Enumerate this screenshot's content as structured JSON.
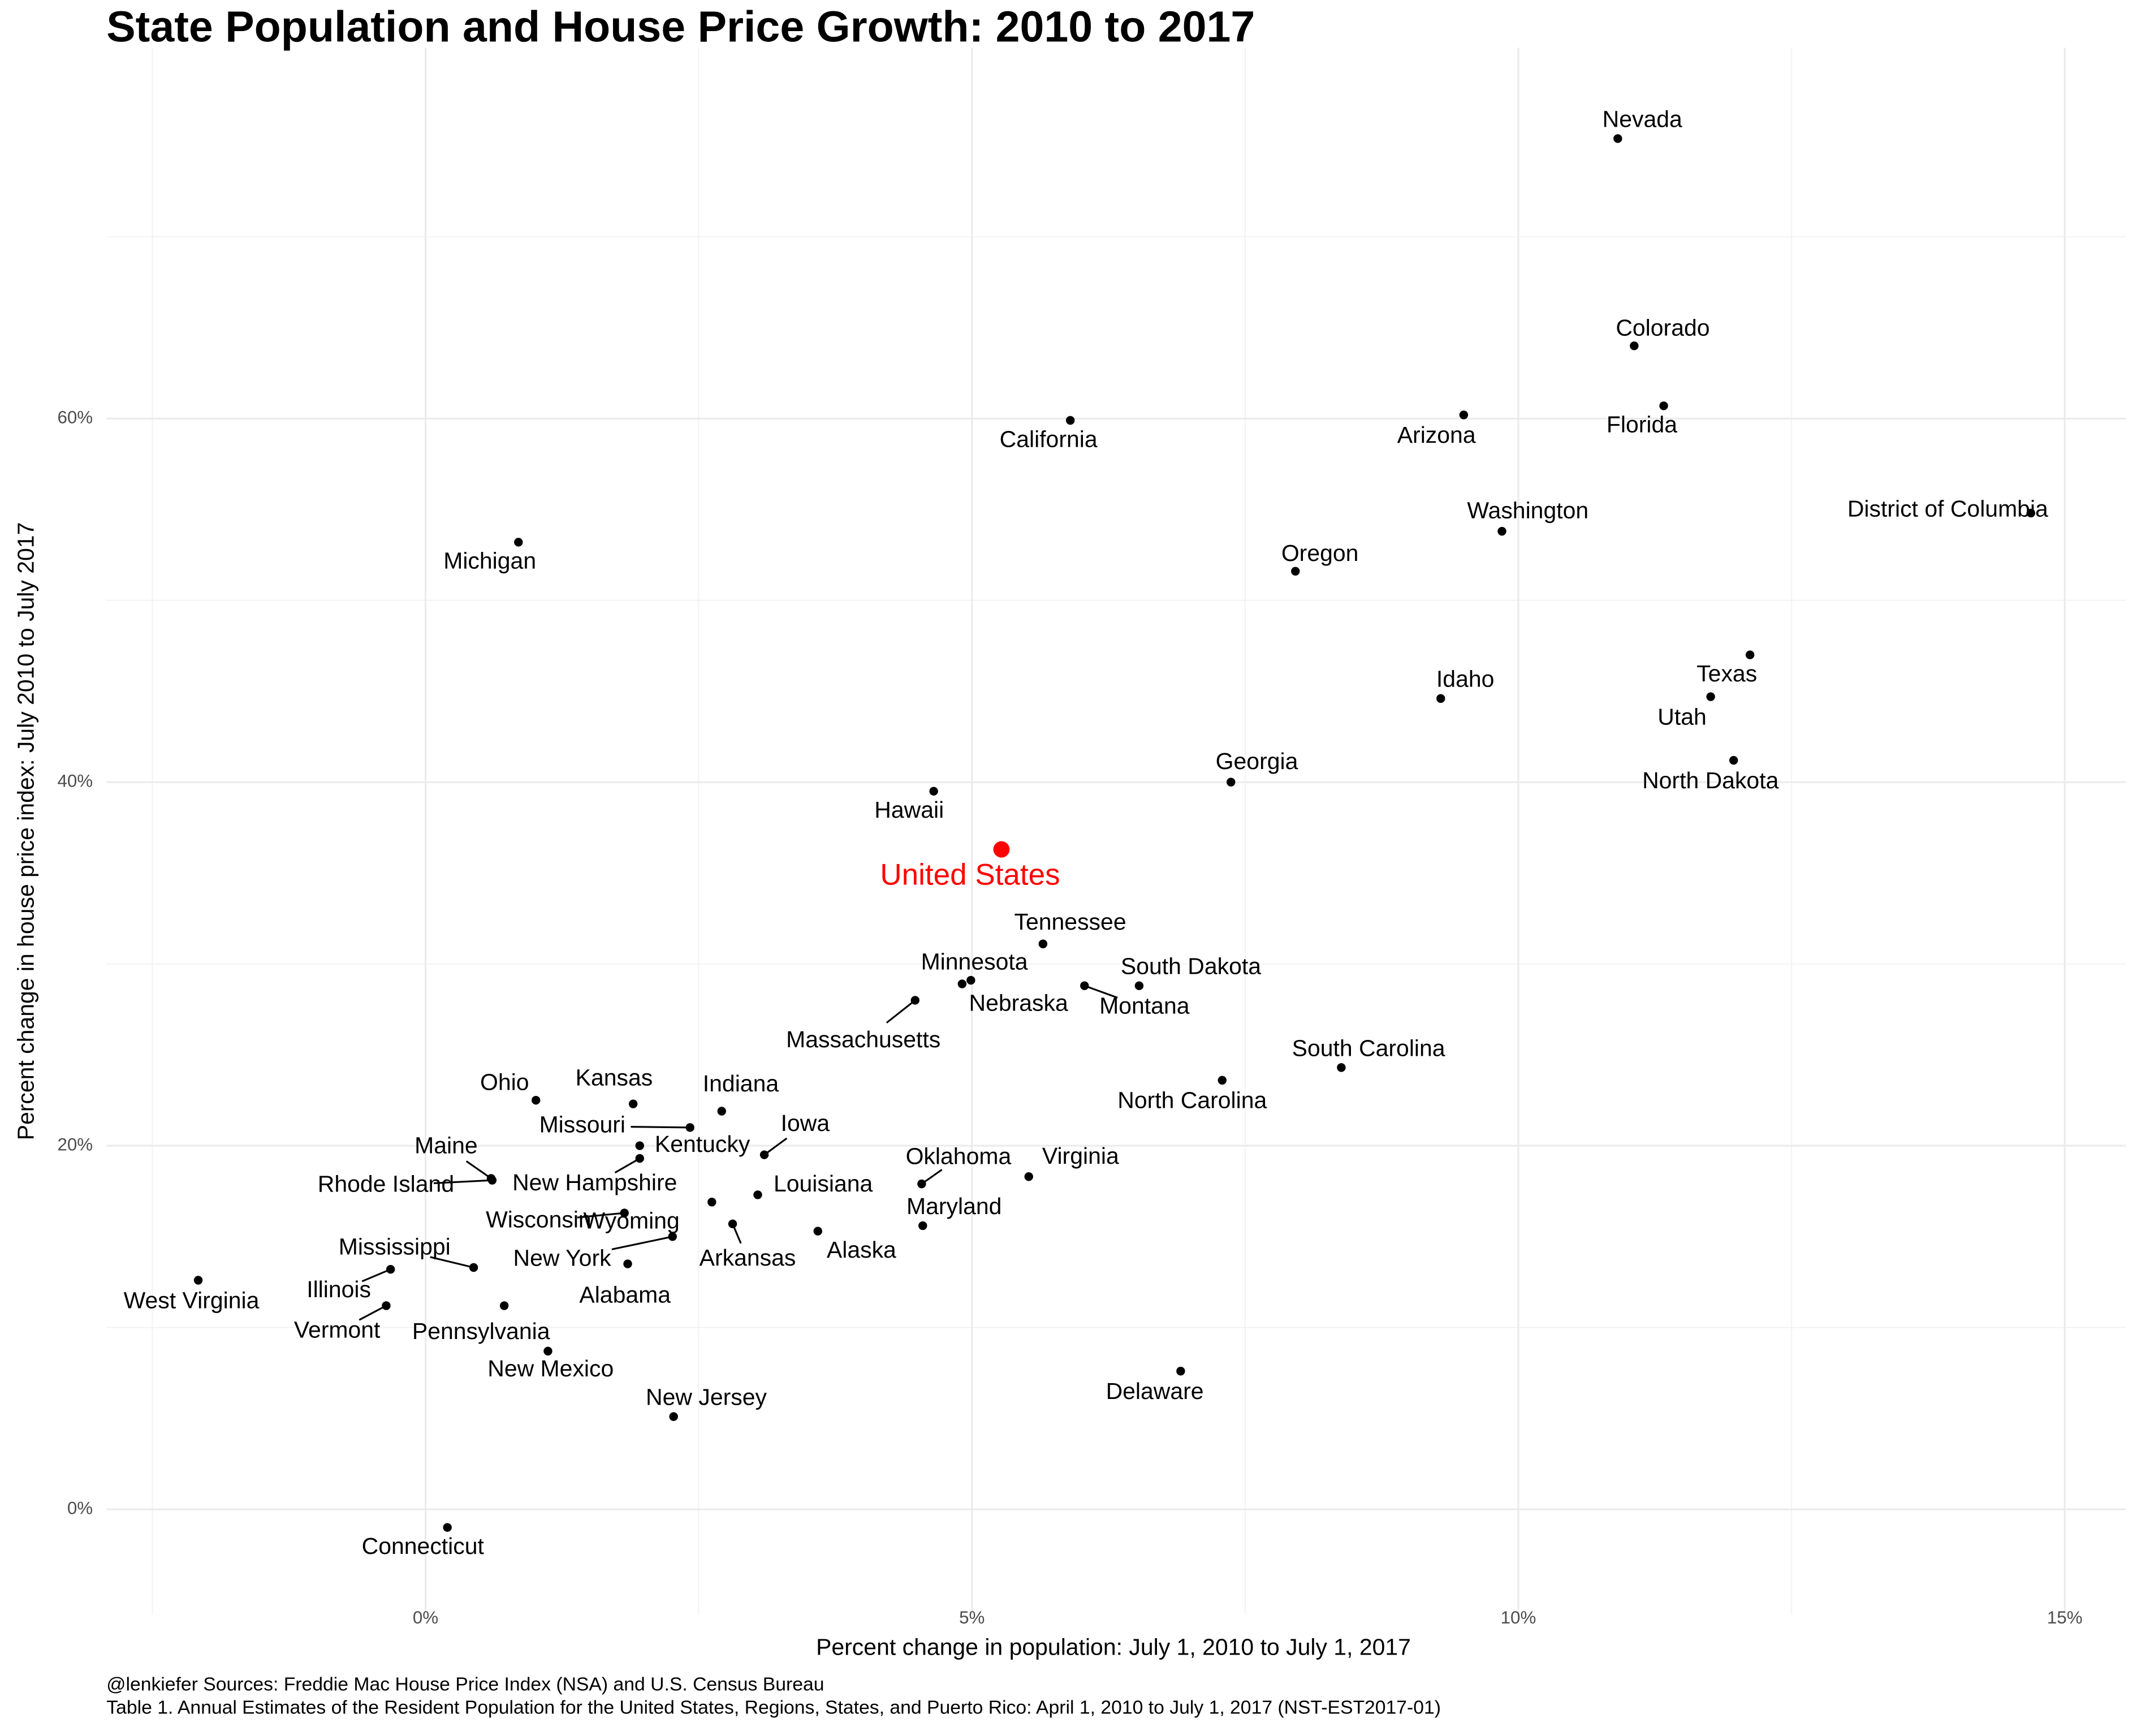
{
  "chart_data": {
    "type": "scatter",
    "title": "State Population and House Price Growth: 2010 to 2017",
    "x_label": "Percent change in population: July 1, 2010 to July 1, 2017",
    "y_label": "Percent change in house price index: July 2010 to July 2017",
    "caption": [
      "@lenkiefer Sources: Freddie Mac House Price Index (NSA) and U.S. Census Bureau",
      "Table 1. Annual Estimates of the Resident Population for the United States, Regions, States, and Puerto Rico: April 1, 2010 to July 1, 2017 (NST-EST2017-01)"
    ],
    "xlim": [
      -2.92,
      15.56
    ],
    "ylim": [
      -5.8,
      80.4
    ],
    "xticks": [
      {
        "value": 0,
        "label": "0%"
      },
      {
        "value": 5,
        "label": "5%"
      },
      {
        "value": 10,
        "label": "10%"
      },
      {
        "value": 15,
        "label": "15%"
      }
    ],
    "yticks": [
      {
        "value": 0,
        "label": "0%"
      },
      {
        "value": 20,
        "label": "20%"
      },
      {
        "value": 40,
        "label": "40%"
      },
      {
        "value": 60,
        "label": "60%"
      }
    ],
    "grid": true,
    "color": "#000000",
    "labels": [
      "Nevada",
      "Colorado",
      "Florida",
      "Arizona",
      "California",
      "Washington",
      "District of Columbia",
      "Michigan",
      "Oregon",
      "Texas",
      "Idaho",
      "Utah",
      "North Dakota",
      "Georgia",
      "Hawaii",
      "Tennessee",
      "Minnesota",
      "Nebraska",
      "South Dakota",
      "Montana",
      "Massachusetts",
      "South Carolina",
      "North Carolina",
      "Ohio",
      "Kansas",
      "Indiana",
      "Missouri",
      "Kentucky",
      "Iowa",
      "New Hampshire",
      "Maine",
      "Rhode Island",
      "Virginia",
      "Oklahoma",
      "Louisiana",
      "Wisconsin",
      "Arkansas",
      "Maryland",
      "Alaska",
      "Wyoming",
      "New York",
      "Alabama",
      "Mississippi",
      "Illinois",
      "West Virginia",
      "Vermont",
      "Pennsylvania",
      "New Mexico",
      "Delaware",
      "New Jersey",
      "Connecticut"
    ],
    "x": [
      10.91,
      11.06,
      11.33,
      9.5,
      5.9,
      9.85,
      14.69,
      0.85,
      7.96,
      12.12,
      9.29,
      11.76,
      11.97,
      7.37,
      4.65,
      5.65,
      4.91,
      4.99,
      6.53,
      6.03,
      4.48,
      8.38,
      7.29,
      1.01,
      1.9,
      2.71,
      2.42,
      1.96,
      3.1,
      1.96,
      0.6,
      0.61,
      5.52,
      4.54,
      3.04,
      1.82,
      2.81,
      4.55,
      3.59,
      2.62,
      2.26,
      1.85,
      0.44,
      -0.32,
      -2.08,
      -0.36,
      0.72,
      1.12,
      6.91,
      2.27,
      0.2
    ],
    "values": [
      75.4,
      64.0,
      60.7,
      60.2,
      59.9,
      53.8,
      54.8,
      53.2,
      51.6,
      47.0,
      44.6,
      44.7,
      41.2,
      40.0,
      39.5,
      31.1,
      28.9,
      29.1,
      28.8,
      28.8,
      28.0,
      24.3,
      23.6,
      22.5,
      22.3,
      21.9,
      21.0,
      20.0,
      19.5,
      19.3,
      18.2,
      18.1,
      18.3,
      17.9,
      17.3,
      16.3,
      15.7,
      15.6,
      15.3,
      16.9,
      15.0,
      13.5,
      13.3,
      13.2,
      12.6,
      11.2,
      11.2,
      8.7,
      7.6,
      5.1,
      -1.0
    ],
    "highlight": {
      "label": "United States",
      "x": 5.27,
      "y": 36.3,
      "color": "#ff0000"
    }
  }
}
